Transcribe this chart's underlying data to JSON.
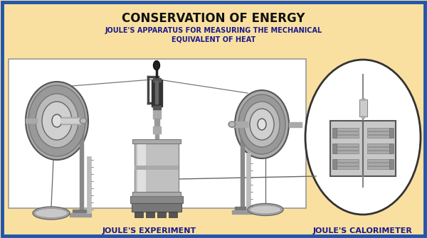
{
  "title": "CONSERVATION OF ENERGY",
  "subtitle_line1": "JOULE'S APPARATUS FOR MEASURING THE MECHANICAL",
  "subtitle_line2": "EQUIVALENT OF HEAT",
  "label_left": "JOULE'S EXPERIMENT",
  "label_right": "JOULE'S CALORIMETER",
  "bg_color": "#FADED9A",
  "border_color": "#2255AA",
  "title_color": "#111111",
  "subtitle_color": "#1a1a8c",
  "label_color": "#1a1a8c",
  "exp_box_color": "#FFFFFF",
  "exp_box_border": "#AAAAAA",
  "cal_oval_color": "#FFFFFF",
  "cal_oval_border": "#444444",
  "g_dark": "#666666",
  "g_mid": "#999999",
  "g_light": "#CCCCCC",
  "g_bright": "#E8E8E8",
  "g_shine": "#F2F2F2"
}
